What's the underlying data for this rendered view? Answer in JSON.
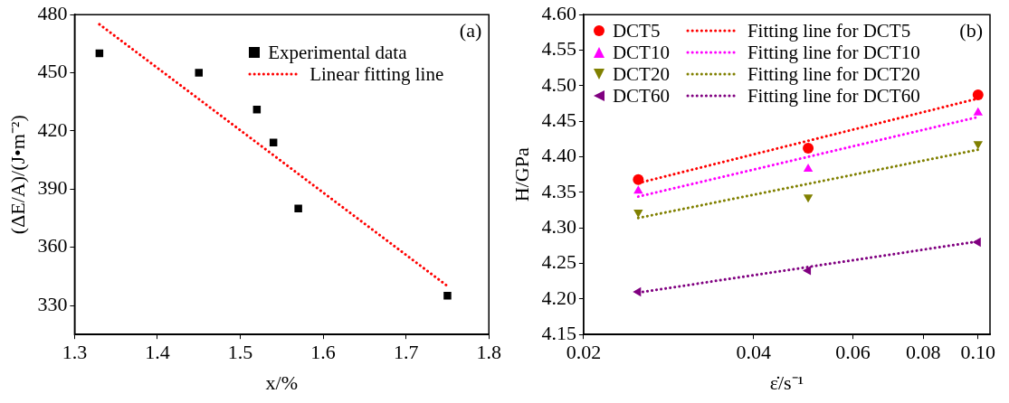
{
  "chart_data": [
    {
      "type": "scatter",
      "xlabel": "x/%",
      "ylabel": "(ΔE/A)/(J•m⁻²)",
      "xlim": [
        1.3,
        1.8
      ],
      "xticks": [
        1.3,
        1.4,
        1.5,
        1.6,
        1.7,
        1.8
      ],
      "ylim": [
        315,
        480
      ],
      "yticks": [
        330,
        360,
        390,
        420,
        450,
        480
      ],
      "legend": "top right",
      "grid": false,
      "annotations": [
        "(a)"
      ],
      "series": [
        {
          "name": "Experimental data",
          "type": "scatter",
          "marker": "square",
          "color": "#000000",
          "x": [
            1.33,
            1.45,
            1.52,
            1.54,
            1.57,
            1.75
          ],
          "values": [
            460,
            450,
            431,
            414,
            380,
            335
          ]
        },
        {
          "name": "Linear fitting line",
          "type": "line",
          "marker": "none",
          "line_style": "dotted",
          "color": "#ff0000",
          "x": [
            1.33,
            1.75
          ],
          "values": [
            475,
            340
          ]
        }
      ]
    },
    {
      "type": "scatter",
      "xlabel": "ε̇/s⁻¹",
      "ylabel": "H/GPa",
      "log": "x",
      "xlim": [
        0.02,
        0.105
      ],
      "xticks": [
        0.02,
        0.04,
        0.06,
        0.08,
        {
          "value": 0.1,
          "label": "0.10"
        }
      ],
      "ylim": [
        4.15,
        4.6
      ],
      "yticks": [
        {
          "value": 4.15,
          "label": "4.15"
        },
        {
          "value": 4.2,
          "label": "4.20"
        },
        {
          "value": 4.25,
          "label": "4.25"
        },
        {
          "value": 4.3,
          "label": "4.30"
        },
        {
          "value": 4.35,
          "label": "4.35"
        },
        {
          "value": 4.4,
          "label": "4.40"
        },
        {
          "value": 4.45,
          "label": "4.45"
        },
        {
          "value": 4.5,
          "label": "4.50"
        },
        {
          "value": 4.55,
          "label": "4.55"
        },
        {
          "value": 4.6,
          "label": "4.60"
        }
      ],
      "legend": "top left",
      "grid": false,
      "annotations": [
        "(b)"
      ],
      "series": [
        {
          "name": "DCT5",
          "type": "scatter",
          "marker": "circle",
          "color": "#ff0000",
          "x": [
            0.025,
            0.05,
            0.1
          ],
          "values": [
            4.368,
            4.412,
            4.487
          ]
        },
        {
          "name": "Fitting line for DCT5",
          "type": "line",
          "marker": "none",
          "line_style": "dotted",
          "color": "#ff0000",
          "x": [
            0.025,
            0.1
          ],
          "values": [
            4.363,
            4.482
          ]
        },
        {
          "name": "DCT10",
          "type": "scatter",
          "marker": "triangle",
          "color": "#ff00ff",
          "x": [
            0.025,
            0.05,
            0.1
          ],
          "values": [
            4.352,
            4.383,
            4.462
          ]
        },
        {
          "name": "Fitting line for DCT10",
          "type": "line",
          "marker": "none",
          "line_style": "dotted",
          "color": "#ff00ff",
          "x": [
            0.025,
            0.1
          ],
          "values": [
            4.344,
            4.456
          ]
        },
        {
          "name": "DCT20",
          "type": "scatter",
          "marker": "triangle-down",
          "color": "#808000",
          "x": [
            0.025,
            0.05,
            0.1
          ],
          "values": [
            4.322,
            4.343,
            4.418
          ]
        },
        {
          "name": "Fitting line for DCT20",
          "type": "line",
          "marker": "none",
          "line_style": "dotted",
          "color": "#808000",
          "x": [
            0.025,
            0.1
          ],
          "values": [
            4.314,
            4.41
          ]
        },
        {
          "name": "DCT60",
          "type": "scatter",
          "marker": "triangle-left",
          "color": "#800080",
          "x": [
            0.025,
            0.05,
            0.1
          ],
          "values": [
            4.21,
            4.24,
            4.28
          ]
        },
        {
          "name": "Fitting line for DCT60",
          "type": "line",
          "marker": "none",
          "line_style": "dotted",
          "color": "#800080",
          "x": [
            0.025,
            0.1
          ],
          "values": [
            4.209,
            4.281
          ]
        }
      ]
    }
  ]
}
